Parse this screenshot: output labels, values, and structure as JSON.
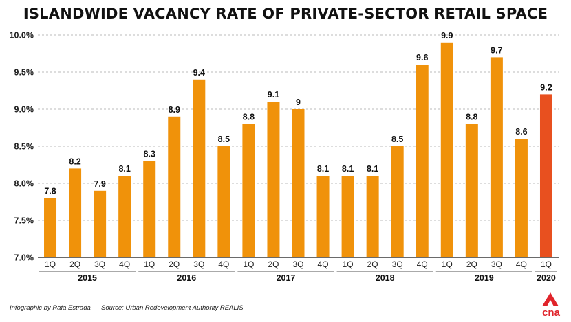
{
  "chart_data": {
    "type": "bar",
    "title": "ISLANDWIDE VACANCY RATE OF PRIVATE-SECTOR RETAIL SPACE",
    "y_ticks": [
      "7.0%",
      "7.5%",
      "8.0%",
      "8.5%",
      "9.0%",
      "9.5%",
      "10.0%"
    ],
    "ylim": [
      7.0,
      10.0
    ],
    "grid": true,
    "categories": [
      "1Q",
      "2Q",
      "3Q",
      "4Q",
      "1Q",
      "2Q",
      "3Q",
      "4Q",
      "1Q",
      "2Q",
      "3Q",
      "4Q",
      "1Q",
      "2Q",
      "3Q",
      "4Q",
      "1Q",
      "2Q",
      "3Q",
      "4Q",
      "1Q"
    ],
    "values": [
      7.8,
      8.2,
      7.9,
      8.1,
      8.3,
      8.9,
      9.4,
      8.5,
      8.8,
      9.1,
      9.0,
      8.1,
      8.1,
      8.1,
      8.5,
      9.6,
      9.9,
      8.8,
      9.7,
      8.6,
      9.2
    ],
    "value_labels": [
      "7.8",
      "8.2",
      "7.9",
      "8.1",
      "8.3",
      "8.9",
      "9.4",
      "8.5",
      "8.8",
      "9.1",
      "9",
      "8.1",
      "8.1",
      "8.1",
      "8.5",
      "9.6",
      "9.9",
      "8.8",
      "9.7",
      "8.6",
      "9.2"
    ],
    "years": [
      {
        "label": "2015",
        "start": 0,
        "count": 4
      },
      {
        "label": "2016",
        "start": 4,
        "count": 4
      },
      {
        "label": "2017",
        "start": 8,
        "count": 4
      },
      {
        "label": "2018",
        "start": 12,
        "count": 4
      },
      {
        "label": "2019",
        "start": 16,
        "count": 4
      },
      {
        "label": "2020",
        "start": 20,
        "count": 1
      }
    ],
    "colors": {
      "bar": "#F0920A",
      "highlight": "#E8501F",
      "grid": "#bbbbbb"
    },
    "highlight_index": 20
  },
  "footer": {
    "credit": "Infographic by Rafa Estrada",
    "source": "Source: Urban Redevelopment Authority REALIS"
  },
  "logo": {
    "text": "cna"
  }
}
